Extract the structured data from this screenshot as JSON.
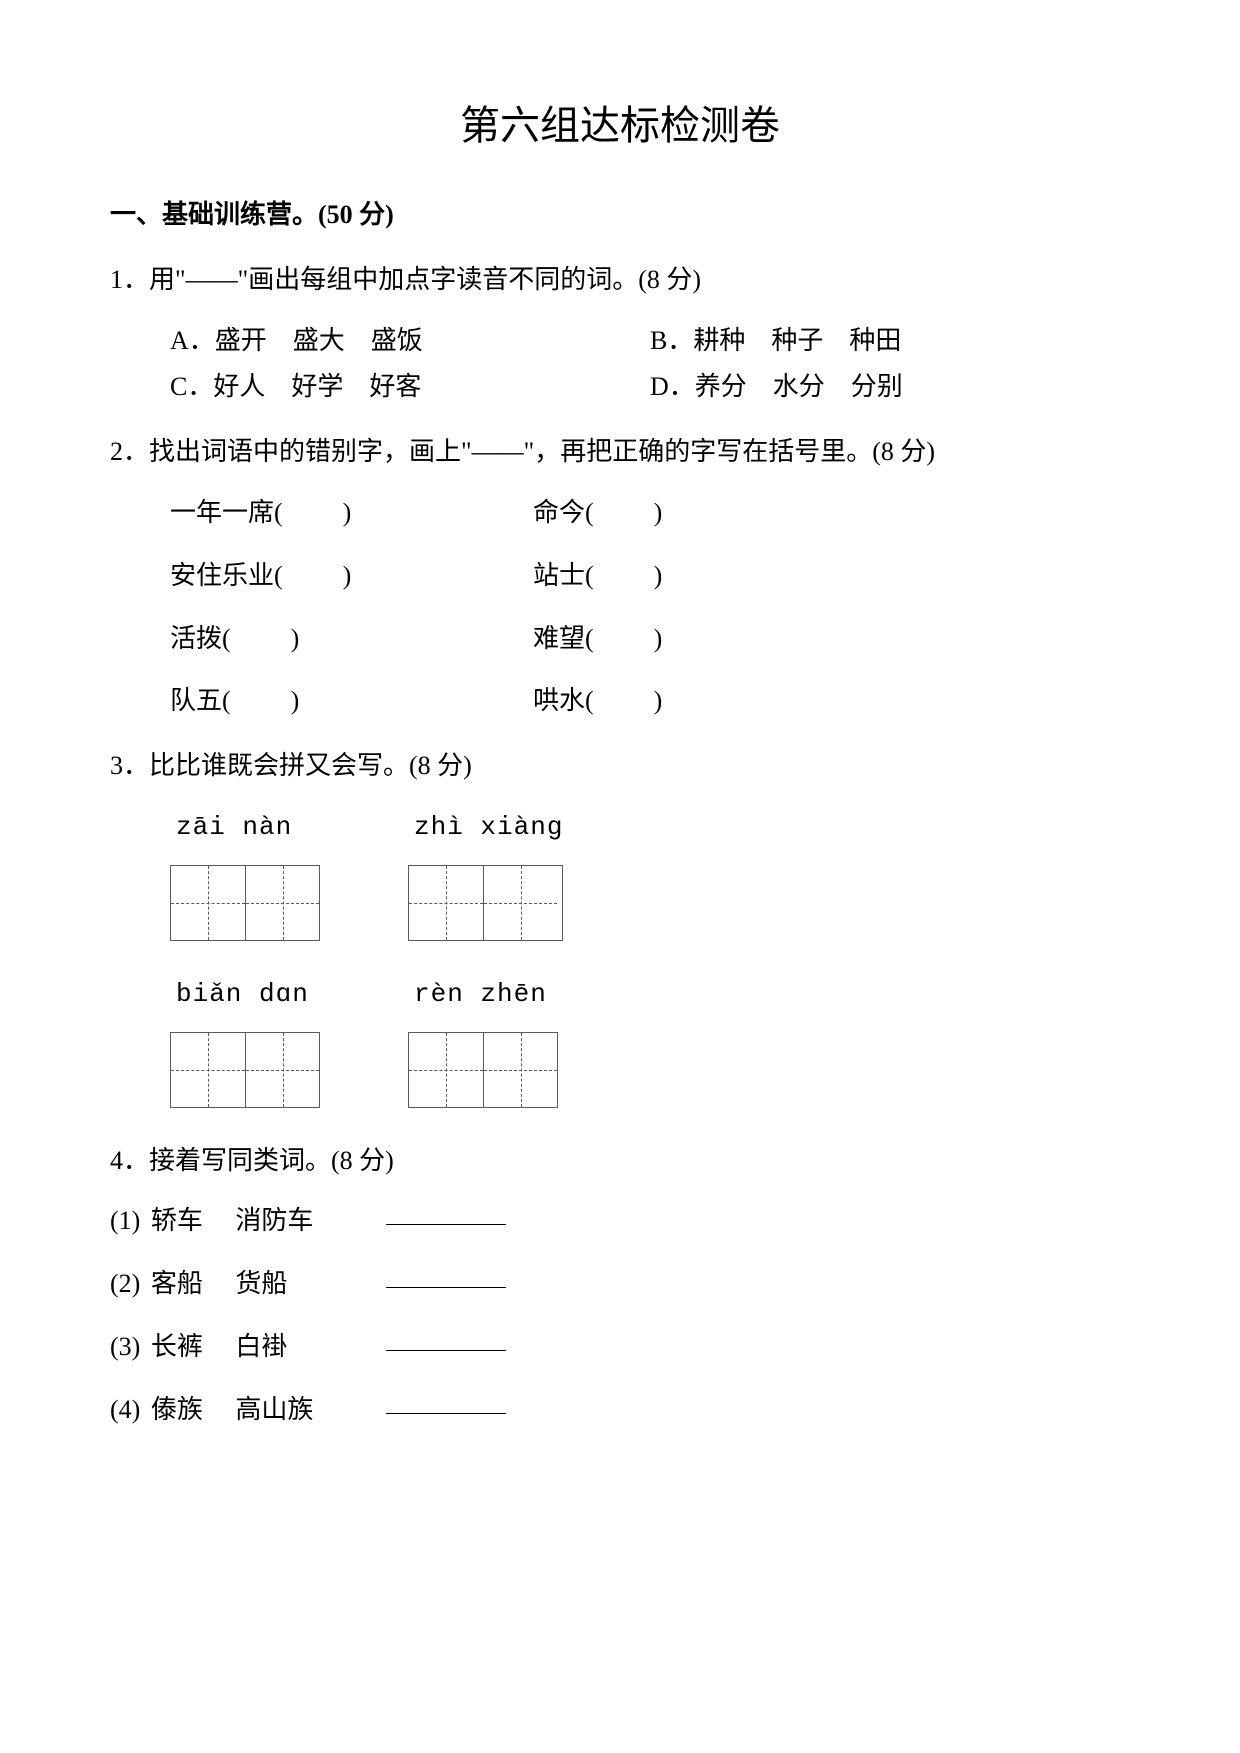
{
  "title": "第六组达标检测卷",
  "section1": {
    "header": "一、基础训练营。(50 分)",
    "q1": {
      "stem": "1．用\"——\"画出每组中加点字读音不同的词。(8 分)",
      "A": "A．盛开　盛大　盛饭",
      "B": "B．耕种　种子　种田",
      "C": "C．好人　好学　好客",
      "D": "D．养分　水分　分别"
    },
    "q2": {
      "stem": "2．找出词语中的错别字，画上\"——\"，再把正确的字写在括号里。(8 分)",
      "r1a": "一年一席(",
      "r1b": "命今(",
      "r2a": "安住乐业(",
      "r2b": "站士(",
      "r3a": "活拨(",
      "r3b": "难望(",
      "r4a": "队五(",
      "r4b": "哄水(",
      "close": ")"
    },
    "q3": {
      "stem": "3．比比谁既会拼又会写。(8 分)",
      "p1": "zāi  nàn",
      "p2": "zhì  xiàng",
      "p3": "biǎn dɑn",
      "p4": "rèn  zhēn"
    },
    "q4": {
      "stem": "4．接着写同类词。(8 分)",
      "s1_lead": "(1)",
      "s1_w1": "轿车",
      "s1_w2": "消防车",
      "s2_lead": "(2)",
      "s2_w1": "客船",
      "s2_w2": "货船",
      "s3_lead": "(3)",
      "s3_w1": "长裤",
      "s3_w2": "白褂",
      "s4_lead": "(4)",
      "s4_w1": "傣族",
      "s4_w2": "高山族"
    }
  }
}
